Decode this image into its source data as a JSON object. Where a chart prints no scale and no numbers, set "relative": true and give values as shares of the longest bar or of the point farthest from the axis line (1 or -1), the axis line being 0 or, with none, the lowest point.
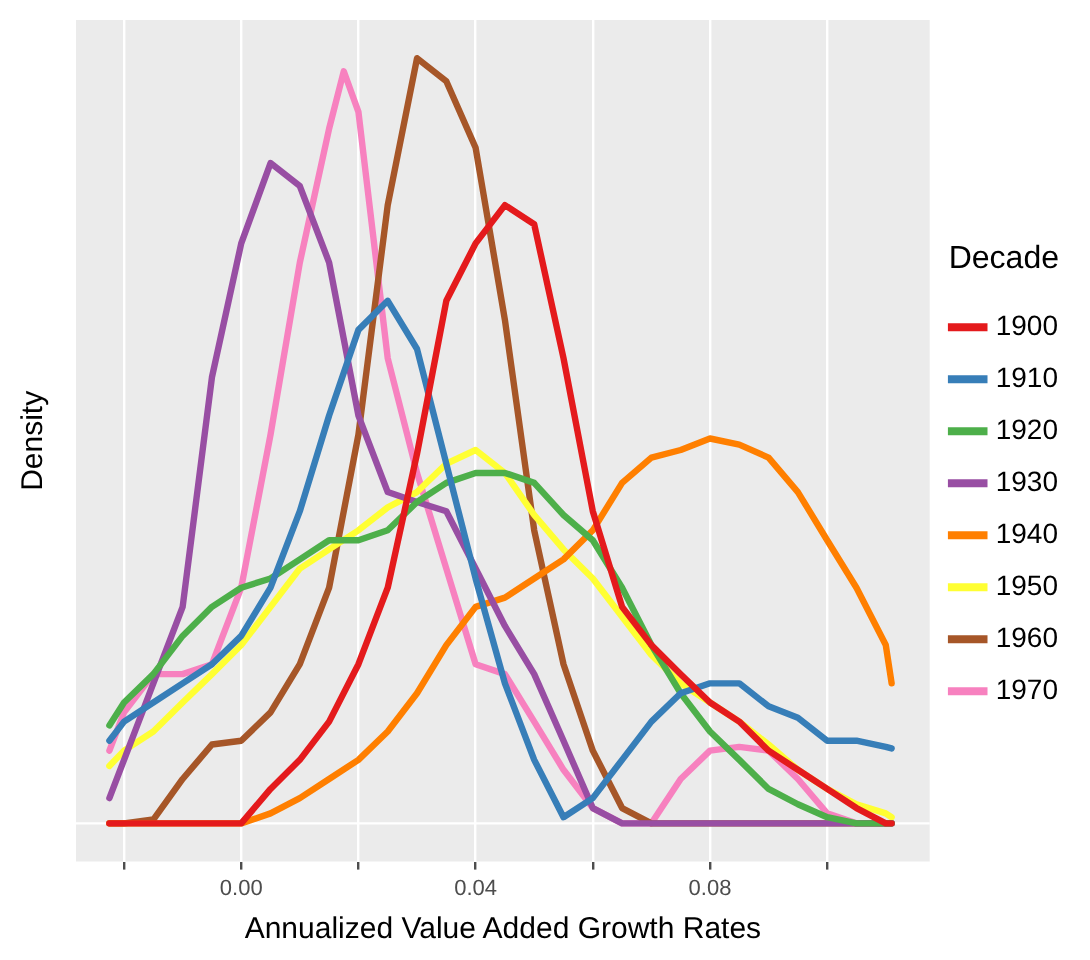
{
  "chart_data": {
    "type": "line",
    "xlabel": "Annualized Value Added Growth Rates",
    "ylabel": "Density",
    "legend_title": "Decade",
    "legend": "right",
    "grid": "x",
    "relative": true,
    "marker": "none",
    "line_style": "solid",
    "xlim": [
      -0.0282,
      0.1175
    ],
    "xticks": [
      {
        "value": -0.02,
        "label": null
      },
      {
        "value": 0,
        "label": "0.00"
      },
      {
        "value": 0.02,
        "label": null
      },
      {
        "value": 0.04,
        "label": "0.04"
      },
      {
        "value": 0.06,
        "label": null
      },
      {
        "value": 0.08,
        "label": "0.08"
      },
      {
        "value": 0.1,
        "label": null
      }
    ],
    "x": [
      -0.0225,
      -0.02,
      -0.015,
      -0.01,
      -0.005,
      0,
      0.005,
      0.01,
      0.015,
      0.02,
      0.025,
      0.03,
      0.035,
      0.04,
      0.045,
      0.05,
      0.055,
      0.06,
      0.065,
      0.07,
      0.075,
      0.08,
      0.085,
      0.09,
      0.095,
      0.1,
      0.105,
      0.11,
      0.111
    ],
    "series": [
      {
        "name": "1900",
        "color": "#e41a1c",
        "values": [
          0,
          0,
          0,
          0,
          0,
          0,
          0.045,
          0.083,
          0.133,
          0.208,
          0.308,
          0.483,
          0.683,
          0.758,
          0.808,
          0.783,
          0.608,
          0.408,
          0.283,
          0.233,
          0.195,
          0.158,
          0.133,
          0.095,
          0.07,
          0.045,
          0.02,
          0,
          0
        ]
      },
      {
        "name": "1910",
        "color": "#377eb8",
        "values": [
          0.108,
          0.133,
          0.158,
          0.183,
          0.208,
          0.245,
          0.308,
          0.408,
          0.533,
          0.645,
          0.683,
          0.62,
          0.47,
          0.32,
          0.183,
          0.083,
          0.008,
          0.033,
          0.083,
          0.133,
          0.17,
          0.183,
          0.183,
          0.153,
          0.138,
          0.108,
          0.108,
          0.1,
          0.098
        ]
      },
      {
        "name": "1920",
        "color": "#4daf4a",
        "values": [
          0.128,
          0.158,
          0.195,
          0.245,
          0.283,
          0.308,
          0.32,
          0.345,
          0.37,
          0.37,
          0.383,
          0.42,
          0.445,
          0.458,
          0.458,
          0.445,
          0.403,
          0.37,
          0.308,
          0.233,
          0.17,
          0.12,
          0.083,
          0.045,
          0.025,
          0.008,
          0,
          0,
          0
        ]
      },
      {
        "name": "1930",
        "color": "#984ea3",
        "values": [
          0.033,
          0.083,
          0.183,
          0.283,
          0.583,
          0.758,
          0.863,
          0.833,
          0.733,
          0.533,
          0.433,
          0.42,
          0.408,
          0.333,
          0.258,
          0.195,
          0.108,
          0.02,
          0,
          0,
          0,
          0,
          0,
          0,
          0,
          0,
          0,
          0,
          0
        ]
      },
      {
        "name": "1940",
        "color": "#ff7f00",
        "values": [
          0,
          0,
          0,
          0,
          0,
          0,
          0.013,
          0.033,
          0.058,
          0.083,
          0.12,
          0.17,
          0.233,
          0.283,
          0.295,
          0.32,
          0.345,
          0.383,
          0.445,
          0.478,
          0.488,
          0.503,
          0.495,
          0.478,
          0.433,
          0.37,
          0.308,
          0.233,
          0.183
        ]
      },
      {
        "name": "1950",
        "color": "#ffff33",
        "values": [
          0.075,
          0.095,
          0.12,
          0.158,
          0.195,
          0.233,
          0.283,
          0.333,
          0.358,
          0.383,
          0.413,
          0.433,
          0.47,
          0.488,
          0.458,
          0.403,
          0.358,
          0.32,
          0.27,
          0.22,
          0.183,
          0.158,
          0.133,
          0.103,
          0.07,
          0.045,
          0.025,
          0.013,
          0.008
        ]
      },
      {
        "name": "1960",
        "color": "#a65628",
        "values": [
          0,
          0,
          0.005,
          0.058,
          0.103,
          0.108,
          0.145,
          0.208,
          0.308,
          0.508,
          0.808,
          1,
          0.97,
          0.883,
          0.658,
          0.383,
          0.208,
          0.095,
          0.02,
          0,
          0,
          0,
          0,
          0,
          0,
          0,
          0,
          0,
          0
        ]
      },
      {
        "name": "1970",
        "color": "#f781bf",
        "x": [
          -0.0225,
          -0.02,
          -0.015,
          -0.01,
          -0.005,
          0,
          0.005,
          0.01,
          0.015,
          0.0175,
          0.02,
          0.025,
          0.03,
          0.035,
          0.04,
          0.045,
          0.05,
          0.055,
          0.06,
          0.065,
          0.07,
          0.075,
          0.08,
          0.085,
          0.09,
          0.095,
          0.1,
          0.105,
          0.11,
          0.111
        ],
        "values": [
          0.095,
          0.145,
          0.195,
          0.195,
          0.208,
          0.308,
          0.508,
          0.733,
          0.908,
          0.983,
          0.93,
          0.608,
          0.458,
          0.333,
          0.208,
          0.195,
          0.133,
          0.07,
          0.02,
          0,
          0,
          0.058,
          0.095,
          0.1,
          0.095,
          0.058,
          0.013,
          0,
          0,
          0
        ]
      }
    ]
  }
}
